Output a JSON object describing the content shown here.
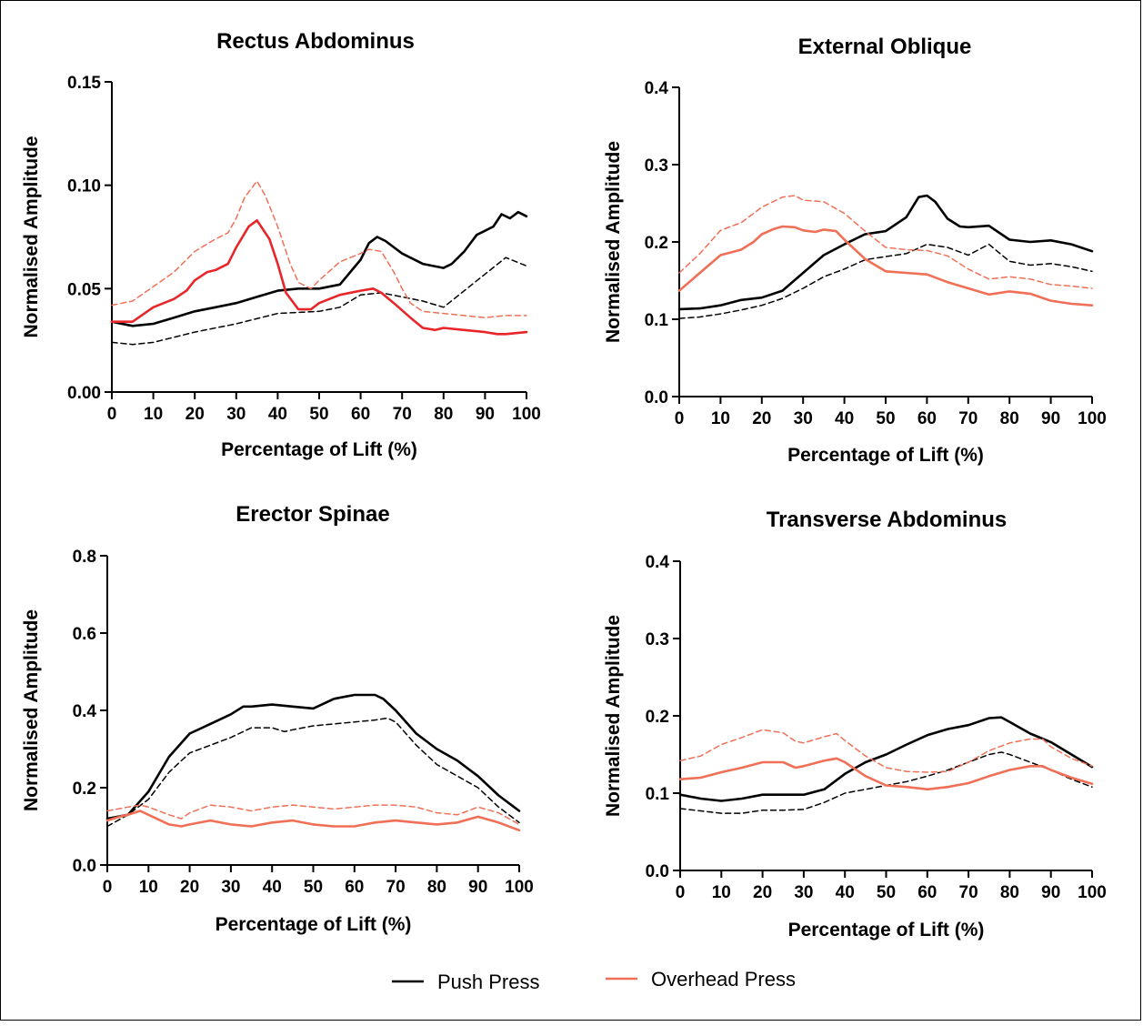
{
  "legend": [
    {
      "label": "Push Press",
      "color": "#000000"
    },
    {
      "label": "Overhead Press",
      "color": "#f07057"
    }
  ],
  "chart_data": [
    {
      "type": "line",
      "title": "Rectus Abdominus",
      "xlabel": "Percentage of Lift  (%)",
      "ylabel": "Normalised Amplitude",
      "xlim": [
        0,
        100
      ],
      "ylim": [
        0,
        0.15
      ],
      "xticks": [
        "0",
        "10",
        "20",
        "30",
        "40",
        "50",
        "60",
        "70",
        "80",
        "90",
        "100"
      ],
      "yticks": [
        "0.00",
        "0.05",
        "0.10",
        "0.15"
      ],
      "accent": "#e8262a",
      "series": [
        {
          "name": "Push Press",
          "style": "solid",
          "color": "#000000",
          "x": [
            0,
            5,
            10,
            15,
            20,
            25,
            30,
            35,
            40,
            45,
            50,
            55,
            60,
            62,
            64,
            66,
            70,
            75,
            80,
            82,
            85,
            88,
            90,
            92,
            94,
            96,
            98,
            100
          ],
          "y": [
            0.034,
            0.032,
            0.033,
            0.036,
            0.039,
            0.041,
            0.043,
            0.046,
            0.049,
            0.05,
            0.05,
            0.052,
            0.064,
            0.072,
            0.075,
            0.073,
            0.067,
            0.062,
            0.06,
            0.062,
            0.068,
            0.076,
            0.078,
            0.08,
            0.086,
            0.084,
            0.087,
            0.085
          ]
        },
        {
          "name": "Push Press",
          "style": "dashed",
          "color": "#000000",
          "x": [
            0,
            5,
            10,
            20,
            30,
            40,
            50,
            55,
            60,
            65,
            70,
            75,
            80,
            85,
            90,
            95,
            100
          ],
          "y": [
            0.024,
            0.023,
            0.024,
            0.029,
            0.033,
            0.038,
            0.039,
            0.041,
            0.047,
            0.048,
            0.046,
            0.044,
            0.041,
            0.049,
            0.057,
            0.065,
            0.061
          ]
        },
        {
          "name": "Overhead Press",
          "style": "solid",
          "color": "#e8262a",
          "x": [
            0,
            5,
            10,
            15,
            18,
            20,
            23,
            25,
            28,
            30,
            33,
            35,
            38,
            40,
            42,
            45,
            48,
            50,
            55,
            60,
            63,
            65,
            68,
            72,
            75,
            78,
            80,
            85,
            90,
            93,
            95,
            100
          ],
          "y": [
            0.034,
            0.034,
            0.041,
            0.045,
            0.049,
            0.054,
            0.058,
            0.059,
            0.062,
            0.07,
            0.08,
            0.083,
            0.074,
            0.062,
            0.048,
            0.04,
            0.04,
            0.043,
            0.047,
            0.049,
            0.05,
            0.048,
            0.043,
            0.036,
            0.031,
            0.03,
            0.031,
            0.03,
            0.029,
            0.028,
            0.028,
            0.029
          ]
        },
        {
          "name": "Overhead Press",
          "style": "dashed",
          "color": "#f07057",
          "x": [
            0,
            5,
            10,
            15,
            20,
            25,
            28,
            30,
            32,
            35,
            37,
            40,
            43,
            45,
            48,
            50,
            55,
            60,
            62,
            65,
            68,
            70,
            72,
            75,
            80,
            85,
            90,
            95,
            100
          ],
          "y": [
            0.042,
            0.044,
            0.051,
            0.058,
            0.068,
            0.074,
            0.077,
            0.084,
            0.094,
            0.102,
            0.095,
            0.08,
            0.062,
            0.053,
            0.05,
            0.054,
            0.063,
            0.067,
            0.069,
            0.068,
            0.058,
            0.05,
            0.043,
            0.039,
            0.038,
            0.037,
            0.036,
            0.037,
            0.037
          ]
        }
      ]
    },
    {
      "type": "line",
      "title": "External Oblique",
      "xlabel": "Percentage of Lift  (%)",
      "ylabel": "Normalised Amplitude",
      "xlim": [
        0,
        100
      ],
      "ylim": [
        0,
        0.4
      ],
      "xticks": [
        "0",
        "10",
        "20",
        "30",
        "40",
        "50",
        "60",
        "70",
        "80",
        "90",
        "100"
      ],
      "yticks": [
        "0.0",
        "0.1",
        "0.2",
        "0.3",
        "0.4"
      ],
      "accent": "#f07057",
      "series": [
        {
          "name": "Push Press",
          "style": "solid",
          "color": "#000000",
          "x": [
            0,
            5,
            10,
            15,
            20,
            25,
            30,
            35,
            40,
            45,
            50,
            55,
            58,
            60,
            62,
            65,
            68,
            70,
            75,
            80,
            85,
            90,
            95,
            100
          ],
          "y": [
            0.113,
            0.114,
            0.118,
            0.125,
            0.128,
            0.137,
            0.16,
            0.183,
            0.197,
            0.21,
            0.214,
            0.232,
            0.258,
            0.26,
            0.252,
            0.23,
            0.22,
            0.219,
            0.221,
            0.203,
            0.2,
            0.202,
            0.197,
            0.188
          ]
        },
        {
          "name": "Push Press",
          "style": "dashed",
          "color": "#000000",
          "x": [
            0,
            5,
            10,
            15,
            20,
            25,
            30,
            35,
            40,
            45,
            50,
            55,
            60,
            65,
            70,
            75,
            80,
            85,
            90,
            95,
            100
          ],
          "y": [
            0.101,
            0.103,
            0.107,
            0.112,
            0.118,
            0.127,
            0.14,
            0.155,
            0.165,
            0.177,
            0.181,
            0.185,
            0.197,
            0.193,
            0.183,
            0.197,
            0.175,
            0.17,
            0.172,
            0.168,
            0.162
          ]
        },
        {
          "name": "Overhead Press",
          "style": "solid",
          "color": "#f07057",
          "x": [
            0,
            5,
            10,
            15,
            18,
            20,
            23,
            25,
            28,
            30,
            33,
            35,
            38,
            40,
            45,
            50,
            55,
            60,
            65,
            70,
            75,
            80,
            85,
            90,
            95,
            100
          ],
          "y": [
            0.137,
            0.16,
            0.183,
            0.19,
            0.2,
            0.21,
            0.217,
            0.22,
            0.219,
            0.215,
            0.213,
            0.216,
            0.214,
            0.203,
            0.178,
            0.162,
            0.16,
            0.158,
            0.148,
            0.14,
            0.132,
            0.136,
            0.133,
            0.124,
            0.12,
            0.118
          ]
        },
        {
          "name": "Overhead Press",
          "style": "dashed",
          "color": "#f07057",
          "x": [
            0,
            5,
            10,
            15,
            20,
            25,
            28,
            30,
            35,
            40,
            45,
            50,
            55,
            60,
            65,
            70,
            75,
            80,
            85,
            90,
            95,
            100
          ],
          "y": [
            0.16,
            0.185,
            0.215,
            0.225,
            0.245,
            0.258,
            0.26,
            0.254,
            0.252,
            0.237,
            0.214,
            0.193,
            0.19,
            0.189,
            0.182,
            0.165,
            0.152,
            0.155,
            0.152,
            0.145,
            0.143,
            0.14
          ]
        }
      ]
    },
    {
      "type": "line",
      "title": "Erector Spinae",
      "xlabel": "Percentage of Lift  (%)",
      "ylabel": "Normalised Amplitude",
      "xlim": [
        0,
        100
      ],
      "ylim": [
        0,
        0.8
      ],
      "xticks": [
        "0",
        "10",
        "20",
        "30",
        "40",
        "50",
        "60",
        "70",
        "80",
        "90",
        "100"
      ],
      "yticks": [
        "0.0",
        "0.2",
        "0.4",
        "0.6",
        "0.8"
      ],
      "accent": "#f07057",
      "series": [
        {
          "name": "Push Press",
          "style": "solid",
          "color": "#000000",
          "x": [
            0,
            5,
            10,
            15,
            20,
            25,
            30,
            33,
            35,
            40,
            45,
            50,
            55,
            60,
            65,
            67,
            70,
            75,
            80,
            85,
            90,
            95,
            100
          ],
          "y": [
            0.12,
            0.13,
            0.19,
            0.28,
            0.34,
            0.365,
            0.39,
            0.41,
            0.41,
            0.415,
            0.41,
            0.405,
            0.43,
            0.44,
            0.44,
            0.43,
            0.4,
            0.34,
            0.3,
            0.27,
            0.23,
            0.18,
            0.14
          ]
        },
        {
          "name": "Push Press",
          "style": "dashed",
          "color": "#000000",
          "x": [
            0,
            5,
            10,
            15,
            20,
            25,
            30,
            35,
            40,
            43,
            45,
            50,
            55,
            60,
            65,
            68,
            70,
            75,
            80,
            85,
            90,
            95,
            100
          ],
          "y": [
            0.1,
            0.13,
            0.17,
            0.24,
            0.29,
            0.31,
            0.33,
            0.355,
            0.355,
            0.345,
            0.35,
            0.36,
            0.365,
            0.37,
            0.375,
            0.38,
            0.37,
            0.31,
            0.26,
            0.23,
            0.2,
            0.15,
            0.11
          ]
        },
        {
          "name": "Overhead Press",
          "style": "solid",
          "color": "#f07057",
          "x": [
            0,
            3,
            5,
            8,
            10,
            15,
            18,
            20,
            25,
            30,
            35,
            40,
            45,
            50,
            55,
            60,
            65,
            70,
            75,
            80,
            85,
            90,
            95,
            100
          ],
          "y": [
            0.115,
            0.125,
            0.13,
            0.14,
            0.13,
            0.105,
            0.1,
            0.105,
            0.115,
            0.105,
            0.1,
            0.11,
            0.115,
            0.105,
            0.1,
            0.1,
            0.11,
            0.115,
            0.11,
            0.105,
            0.11,
            0.125,
            0.11,
            0.09
          ]
        },
        {
          "name": "Overhead Press",
          "style": "dashed",
          "color": "#f07057",
          "x": [
            0,
            5,
            8,
            10,
            15,
            18,
            20,
            25,
            30,
            35,
            40,
            45,
            50,
            55,
            60,
            65,
            70,
            75,
            80,
            85,
            90,
            95,
            100
          ],
          "y": [
            0.14,
            0.15,
            0.155,
            0.15,
            0.13,
            0.12,
            0.135,
            0.155,
            0.15,
            0.14,
            0.15,
            0.155,
            0.15,
            0.145,
            0.15,
            0.155,
            0.155,
            0.15,
            0.135,
            0.13,
            0.15,
            0.135,
            0.105
          ]
        }
      ]
    },
    {
      "type": "line",
      "title": "Transverse Abdominus",
      "xlabel": "Percentage of Lift  (%)",
      "ylabel": "Normalised Amplitude",
      "xlim": [
        0,
        100
      ],
      "ylim": [
        0,
        0.4
      ],
      "xticks": [
        "0",
        "10",
        "20",
        "30",
        "40",
        "50",
        "60",
        "70",
        "80",
        "90",
        "100"
      ],
      "yticks": [
        "0.0",
        "0.1",
        "0.2",
        "0.3",
        "0.4"
      ],
      "accent": "#f07057",
      "series": [
        {
          "name": "Push Press",
          "style": "solid",
          "color": "#000000",
          "x": [
            0,
            5,
            10,
            15,
            20,
            25,
            30,
            35,
            40,
            45,
            50,
            55,
            60,
            65,
            70,
            75,
            78,
            80,
            85,
            90,
            95,
            100
          ],
          "y": [
            0.098,
            0.093,
            0.09,
            0.093,
            0.098,
            0.098,
            0.098,
            0.105,
            0.125,
            0.14,
            0.15,
            0.163,
            0.175,
            0.183,
            0.188,
            0.197,
            0.198,
            0.192,
            0.177,
            0.166,
            0.15,
            0.134
          ]
        },
        {
          "name": "Push Press",
          "style": "dashed",
          "color": "#000000",
          "x": [
            0,
            5,
            10,
            15,
            20,
            25,
            30,
            35,
            40,
            45,
            50,
            55,
            60,
            65,
            70,
            75,
            78,
            80,
            85,
            90,
            95,
            100
          ],
          "y": [
            0.08,
            0.077,
            0.074,
            0.074,
            0.078,
            0.078,
            0.079,
            0.088,
            0.1,
            0.105,
            0.11,
            0.115,
            0.122,
            0.13,
            0.14,
            0.15,
            0.153,
            0.15,
            0.14,
            0.13,
            0.118,
            0.108
          ]
        },
        {
          "name": "Overhead Press",
          "style": "solid",
          "color": "#f07057",
          "x": [
            0,
            5,
            10,
            15,
            20,
            25,
            28,
            30,
            35,
            38,
            40,
            45,
            50,
            55,
            60,
            65,
            70,
            75,
            80,
            85,
            88,
            90,
            95,
            100
          ],
          "y": [
            0.118,
            0.12,
            0.127,
            0.133,
            0.14,
            0.14,
            0.133,
            0.135,
            0.142,
            0.145,
            0.14,
            0.122,
            0.11,
            0.108,
            0.105,
            0.108,
            0.113,
            0.122,
            0.13,
            0.135,
            0.135,
            0.13,
            0.12,
            0.112
          ]
        },
        {
          "name": "Overhead Press",
          "style": "dashed",
          "color": "#f07057",
          "x": [
            0,
            5,
            10,
            15,
            20,
            25,
            28,
            30,
            35,
            38,
            40,
            45,
            50,
            55,
            60,
            65,
            70,
            75,
            80,
            85,
            88,
            90,
            95,
            100
          ],
          "y": [
            0.142,
            0.148,
            0.163,
            0.172,
            0.182,
            0.178,
            0.167,
            0.165,
            0.173,
            0.177,
            0.168,
            0.148,
            0.133,
            0.128,
            0.127,
            0.128,
            0.14,
            0.155,
            0.165,
            0.17,
            0.17,
            0.16,
            0.145,
            0.135
          ]
        }
      ]
    }
  ]
}
